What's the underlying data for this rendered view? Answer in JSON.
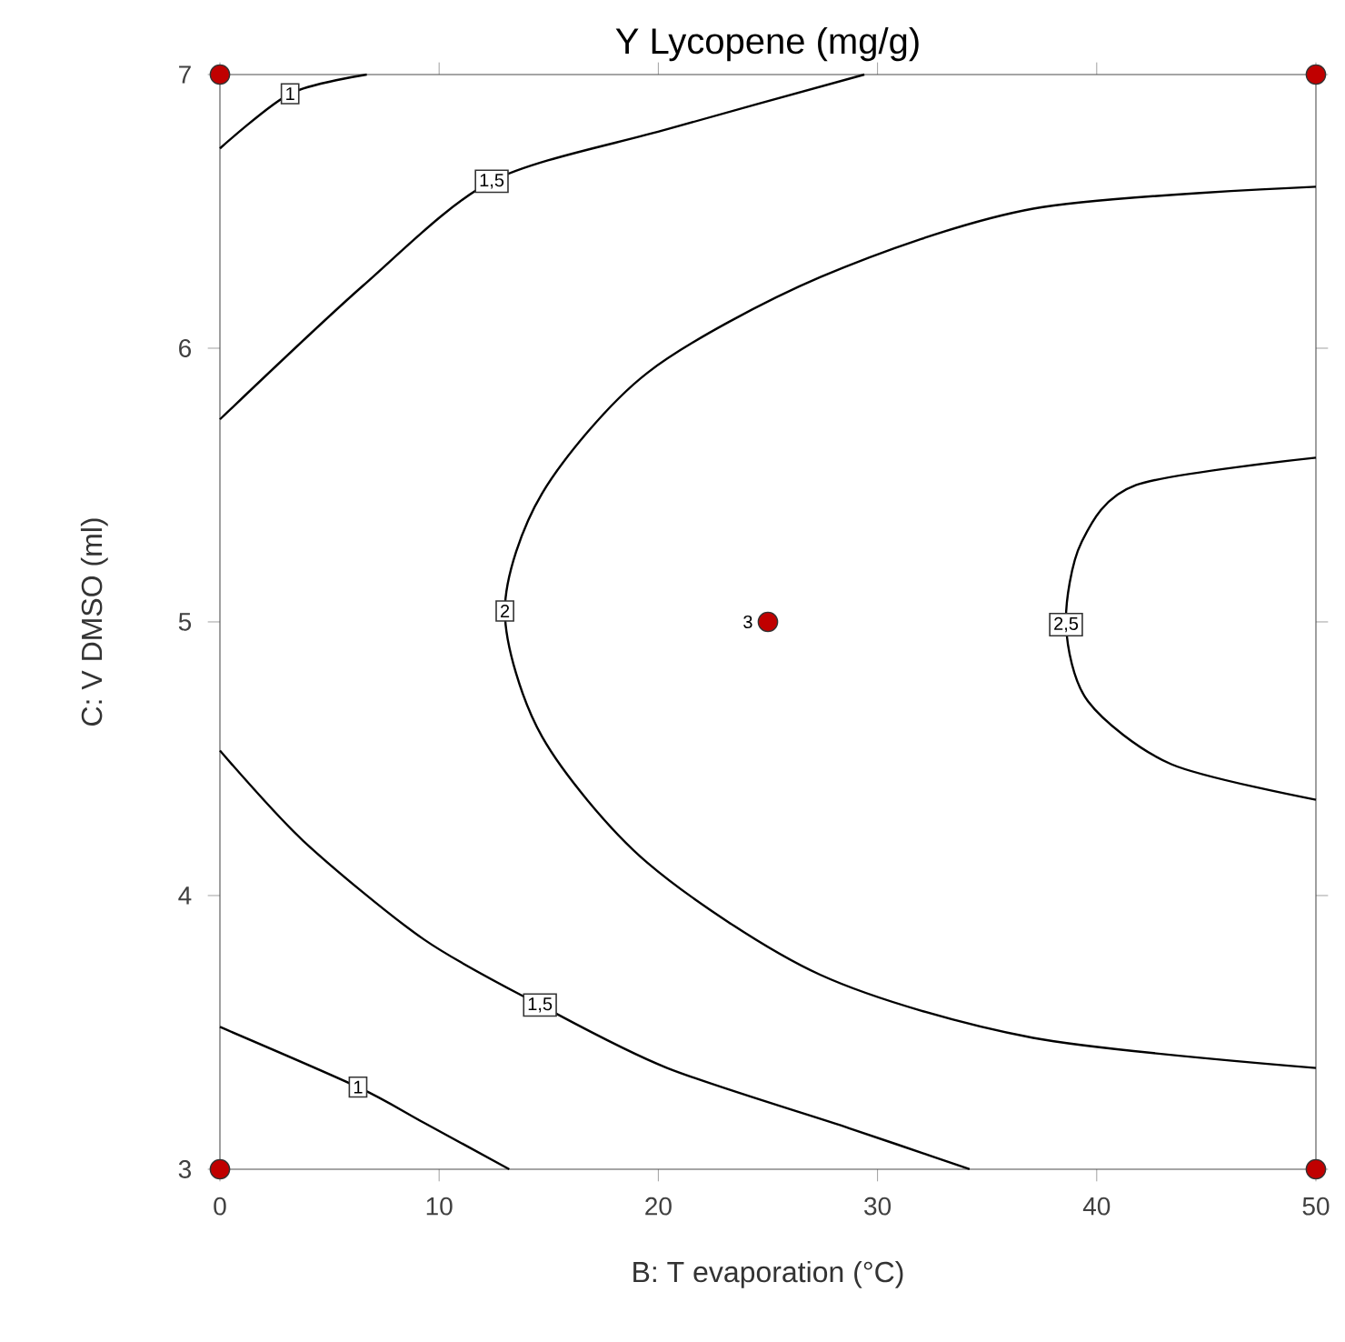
{
  "chart_data": {
    "type": "line",
    "title": "Y Lycopene (mg/g)",
    "xlabel": "B: T evaporation (°C)",
    "ylabel": "C: V DMSO (ml)",
    "xlim": [
      0,
      50
    ],
    "ylim": [
      3,
      7
    ],
    "xticks": [
      0,
      10,
      20,
      30,
      40,
      50
    ],
    "yticks": [
      3,
      4,
      5,
      6,
      7
    ],
    "line_style": "solid",
    "series": [
      {
        "color": "#000000",
        "x": [
          0,
          3.2,
          6.7
        ],
        "values": [
          6.73,
          6.93,
          7
        ]
      },
      {
        "color": "#000000",
        "x": [
          0,
          6.55,
          12.4,
          20.4,
          29.4
        ],
        "values": [
          5.74,
          6.23,
          6.61,
          6.8,
          7
        ]
      },
      {
        "color": "#000000",
        "x": [
          50,
          37.1,
          27.4,
          19.5,
          14.7,
          13.0,
          14.7,
          19.5,
          27.4,
          37.1,
          50
        ],
        "values": [
          6.59,
          6.51,
          6.26,
          5.91,
          5.47,
          5.04,
          4.58,
          4.12,
          3.71,
          3.48,
          3.37
        ]
      },
      {
        "color": "#000000",
        "x": [
          50,
          41.8,
          39.3,
          38.6,
          39.6,
          43.4,
          50
        ],
        "values": [
          5.6,
          5.5,
          5.29,
          4.99,
          4.71,
          4.48,
          4.35
        ]
      },
      {
        "color": "#000000",
        "x": [
          0,
          3.8,
          9.3,
          14.6,
          20.4,
          28.7,
          34.2
        ],
        "values": [
          4.53,
          4.2,
          3.84,
          3.6,
          3.37,
          3.15,
          3
        ]
      },
      {
        "color": "#000000",
        "x": [
          0,
          6.3,
          9.3,
          13.2
        ],
        "values": [
          3.52,
          3.3,
          3.17,
          3
        ]
      },
      {
        "type": "scatter",
        "marker": "circle",
        "color": "#c00000",
        "x": [
          0,
          0,
          50,
          50,
          25
        ],
        "values": [
          3,
          7,
          3,
          7,
          5
        ]
      }
    ],
    "annotations": [
      {
        "text": "1",
        "x": 3.2,
        "y": 6.93
      },
      {
        "text": "1,5",
        "x": 12.4,
        "y": 6.61
      },
      {
        "text": "2",
        "x": 13.0,
        "y": 5.04
      },
      {
        "text": "2,5",
        "x": 38.6,
        "y": 4.99
      },
      {
        "text": "1,5",
        "x": 14.6,
        "y": 3.6
      },
      {
        "text": "1",
        "x": 6.3,
        "y": 3.3
      },
      {
        "text": "3",
        "x": 25,
        "y": 5
      }
    ]
  }
}
